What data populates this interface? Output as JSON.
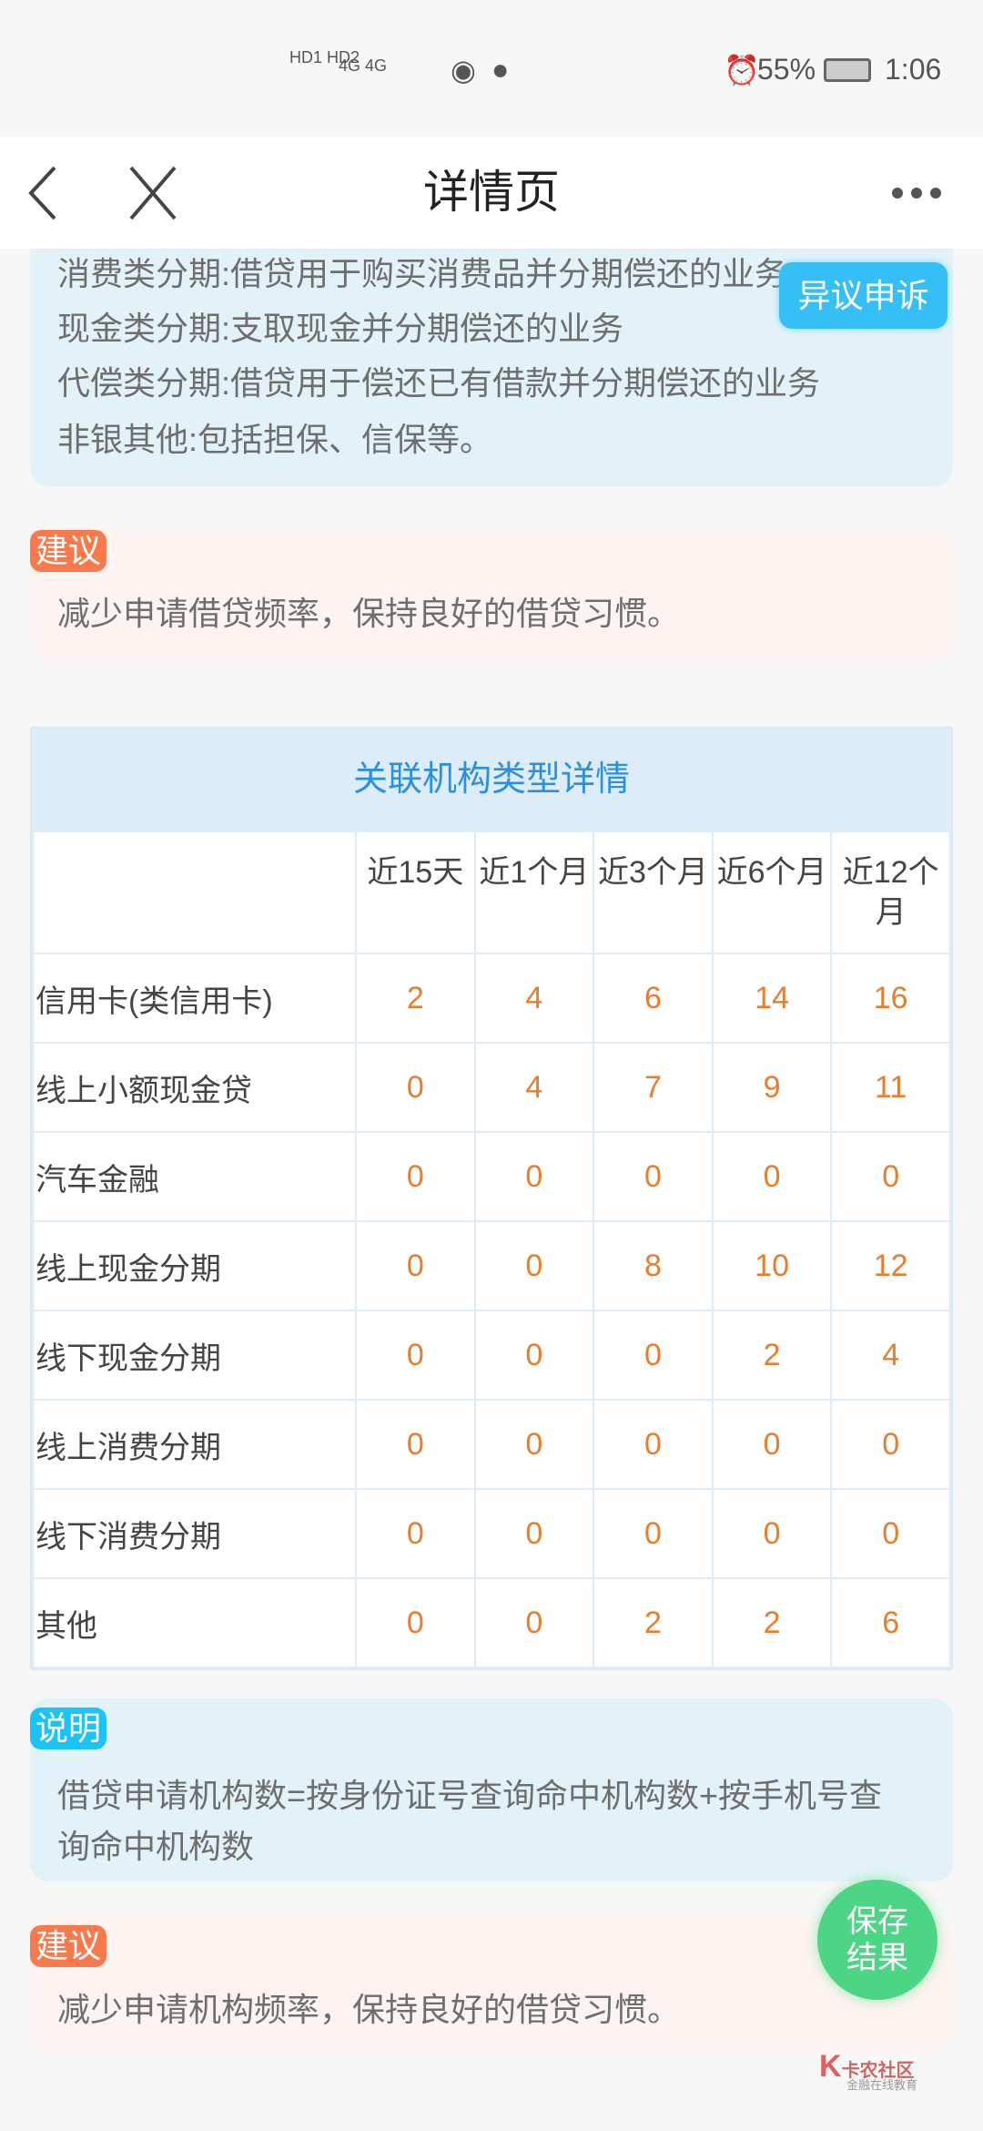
{
  "status_bar": {
    "sim": "HD1 HD2",
    "network": "4G 4G",
    "battery": "55%",
    "time": "1:06",
    "icons": [
      "alarm-icon",
      "battery-icon",
      "wifi-icon",
      "wechat-icon"
    ]
  },
  "header": {
    "title": "详情页",
    "back_icon": "chevron-left-icon",
    "close_icon": "close-icon",
    "more_icon": "more-icon"
  },
  "intro_card": {
    "lines": [
      "消费类分期:借贷用于购买消费品并分期偿还的业务",
      "现金类分期:支取现金并分期偿还的业务",
      "代偿类分期:借贷用于偿还已有借款并分期偿还的业务",
      "非银其他:包括担保、信保等。"
    ]
  },
  "appeal_button": "异议申诉",
  "advice1": {
    "badge": "建议",
    "text": "减少申请借贷频率，保持良好的借贷习惯。"
  },
  "table": {
    "title": "关联机构类型详情",
    "columns": [
      "近15天",
      "近1个月",
      "近3个月",
      "近6个月",
      "近12个月"
    ],
    "rows": [
      {
        "label": "信用卡(类信用卡)",
        "values": [
          2,
          4,
          6,
          14,
          16
        ]
      },
      {
        "label": "线上小额现金贷",
        "values": [
          0,
          4,
          7,
          9,
          11
        ]
      },
      {
        "label": "汽车金融",
        "values": [
          0,
          0,
          0,
          0,
          0
        ]
      },
      {
        "label": "线上现金分期",
        "values": [
          0,
          0,
          8,
          10,
          12
        ]
      },
      {
        "label": "线下现金分期",
        "values": [
          0,
          0,
          0,
          2,
          4
        ]
      },
      {
        "label": "线上消费分期",
        "values": [
          0,
          0,
          0,
          0,
          0
        ]
      },
      {
        "label": "线下消费分期",
        "values": [
          0,
          0,
          0,
          0,
          0
        ]
      },
      {
        "label": "其他",
        "values": [
          0,
          0,
          2,
          2,
          6
        ]
      }
    ]
  },
  "note": {
    "badge": "说明",
    "lines": [
      "借贷申请机构数=按身份证号查询命中机构数+按手机号查",
      "询命中机构数"
    ]
  },
  "advice2": {
    "badge": "建议",
    "text": "减少申请机构频率，保持良好的借贷习惯。"
  },
  "save_button": {
    "line1": "保存",
    "line2": "结果"
  },
  "watermark": {
    "name": "卡农社区",
    "tagline": "金融在线教育"
  },
  "colors": {
    "accent_blue": "#36bff5",
    "badge_orange": "#f87a4c",
    "value_orange": "#e87d2c",
    "save_green": "#4cd584"
  }
}
